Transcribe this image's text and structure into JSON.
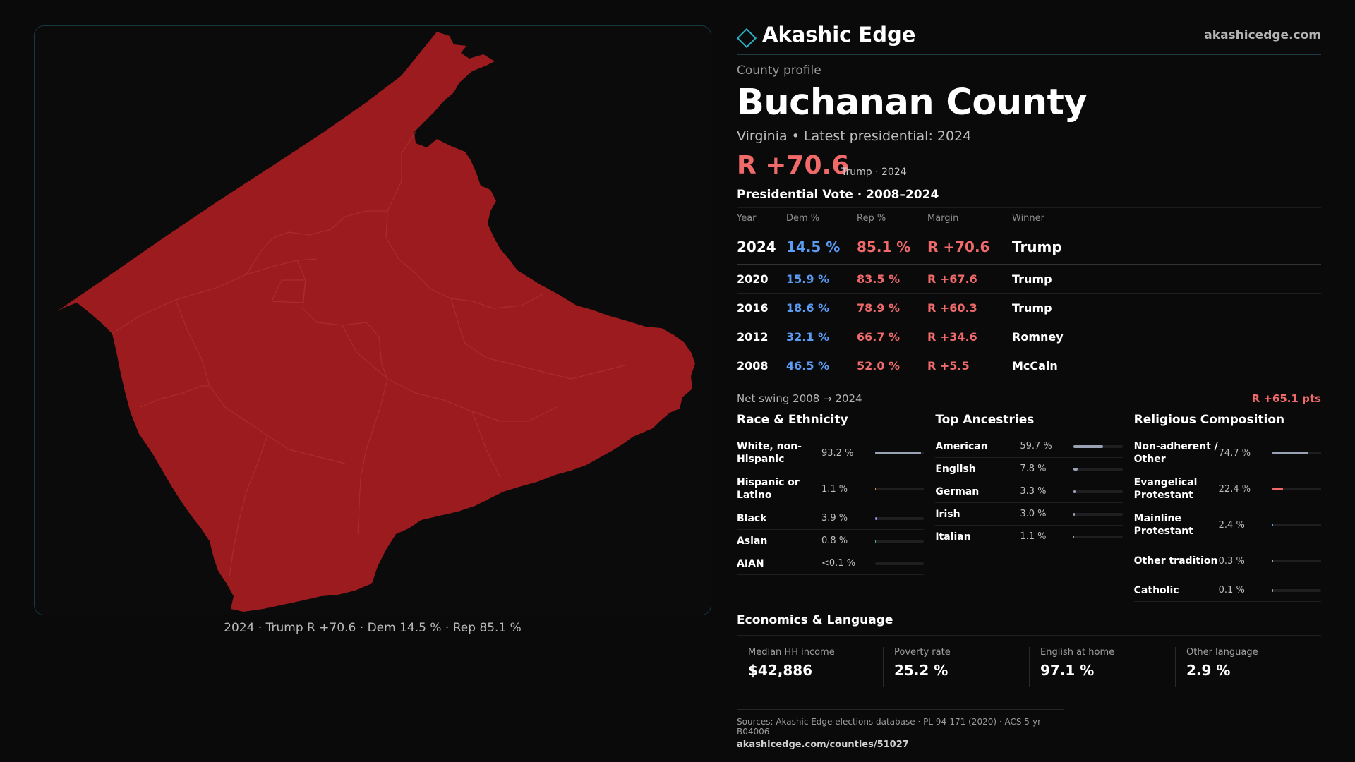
{
  "brand": {
    "name": "Akashic Edge",
    "url": "akashicedge.com",
    "logo_icon": "diamond-outline-icon"
  },
  "profile": {
    "kicker": "County profile",
    "title": "Buchanan County",
    "subtitle": "Virginia • Latest presidential: 2024",
    "headline_margin": "R +70.6",
    "headline_note": "Trump · 2024"
  },
  "votes": {
    "title": "Presidential Vote · 2008–2024",
    "headers": [
      "Year",
      "Dem %",
      "Rep %",
      "Margin",
      "Winner"
    ],
    "rows": [
      {
        "year": "2024",
        "dem": "14.5 %",
        "rep": "85.1 %",
        "margin": "R +70.6",
        "winner": "Trump"
      },
      {
        "year": "2020",
        "dem": "15.9 %",
        "rep": "83.5 %",
        "margin": "R +67.6",
        "winner": "Trump"
      },
      {
        "year": "2016",
        "dem": "18.6 %",
        "rep": "78.9 %",
        "margin": "R +60.3",
        "winner": "Trump"
      },
      {
        "year": "2012",
        "dem": "32.1 %",
        "rep": "66.7 %",
        "margin": "R +34.6",
        "winner": "Romney"
      },
      {
        "year": "2008",
        "dem": "46.5 %",
        "rep": "52.0 %",
        "margin": "R +5.5",
        "winner": "McCain"
      }
    ],
    "swing_label": "Net swing 2008 → 2024",
    "swing_value": "R +65.1 pts"
  },
  "race": {
    "title": "Race & Ethnicity",
    "items": [
      {
        "label": "White, non-Hispanic",
        "value": "93.2 %",
        "fraction": 0.932,
        "color": "#9aa3b5"
      },
      {
        "label": "Hispanic or Latino",
        "value": "1.1 %",
        "fraction": 0.011,
        "color": "#e0903a"
      },
      {
        "label": "Black",
        "value": "3.9 %",
        "fraction": 0.039,
        "color": "#8a86e8"
      },
      {
        "label": "Asian",
        "value": "0.8 %",
        "fraction": 0.008,
        "color": "#4bb3a0"
      },
      {
        "label": "AIAN",
        "value": "<0.1 %",
        "fraction": 0.0,
        "color": "#9aa3b5"
      }
    ]
  },
  "ancestry": {
    "title": "Top Ancestries",
    "items": [
      {
        "label": "American",
        "value": "59.7 %",
        "fraction": 0.597,
        "color": "#9aa3b5"
      },
      {
        "label": "English",
        "value": "7.8 %",
        "fraction": 0.078,
        "color": "#9aa3b5"
      },
      {
        "label": "German",
        "value": "3.3 %",
        "fraction": 0.033,
        "color": "#9aa3b5"
      },
      {
        "label": "Irish",
        "value": "3.0 %",
        "fraction": 0.03,
        "color": "#9aa3b5"
      },
      {
        "label": "Italian",
        "value": "1.1 %",
        "fraction": 0.011,
        "color": "#9aa3b5"
      }
    ]
  },
  "religion": {
    "title": "Religious Composition",
    "items": [
      {
        "label": "Non-adherent / Other",
        "value": "74.7 %",
        "fraction": 0.747,
        "color": "#9aa3b5"
      },
      {
        "label": "Evangelical Protestant",
        "value": "22.4 %",
        "fraction": 0.224,
        "color": "#f06a6a"
      },
      {
        "label": "Mainline Protestant",
        "value": "2.4 %",
        "fraction": 0.024,
        "color": "#5b9cf5"
      },
      {
        "label": "Other tradition",
        "value": "0.3 %",
        "fraction": 0.003,
        "color": "#9aa3b5"
      },
      {
        "label": "Catholic",
        "value": "0.1 %",
        "fraction": 0.001,
        "color": "#9aa3b5"
      }
    ]
  },
  "economics": {
    "title": "Economics & Language",
    "cards": [
      {
        "label": "Median HH income",
        "value": "$42,886"
      },
      {
        "label": "Poverty rate",
        "value": "25.2 %"
      },
      {
        "label": "English at home",
        "value": "97.1 %"
      },
      {
        "label": "Other language",
        "value": "2.9 %"
      }
    ]
  },
  "footer": {
    "sources": "Sources: Akashic Edge elections database · PL 94-171 (2020) · ACS 5-yr B04006",
    "url": "akashicedge.com/counties/51027"
  },
  "map": {
    "caption": "2024 · Trump R +70.6 · Dem 14.5 % · Rep 85.1 %",
    "fill_color": "#9b1b1e",
    "border_color": "#b23236"
  }
}
